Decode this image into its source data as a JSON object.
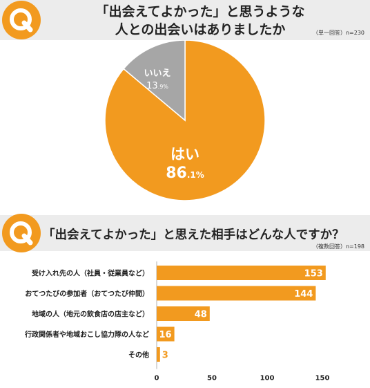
{
  "q1": {
    "icon_letter": "Q",
    "title_line1": "「出会えてよかった」と思うような",
    "title_line2": "人との出会いはありましたか",
    "note": "（単一回答）n=230"
  },
  "q2": {
    "icon_letter": "Q",
    "title": "「出会えてよかった」と思えた相手はどんな人ですか？",
    "note": "（複数回答）n=198"
  },
  "colors": {
    "orange": "#f29a1f",
    "gray": "#a6a6a6",
    "band": "#ececec"
  },
  "chart_data": [
    {
      "type": "pie",
      "slices": [
        {
          "label": "はい",
          "value": 86.1,
          "display_int": "86",
          "display_dec": ".1%",
          "color": "#f29a1f"
        },
        {
          "label": "いいえ",
          "value": 13.9,
          "display_int": "13",
          "display_dec": ".9%",
          "color": "#a6a6a6"
        }
      ]
    },
    {
      "type": "bar",
      "orientation": "horizontal",
      "categories": [
        "受け入れ先の人（社員・従業員など）",
        "おてつたびの参加者（おてつたび仲間）",
        "地域の人（地元の飲食店の店主など）",
        "行政関係者や地域おこし協力隊の人など",
        "その他"
      ],
      "values": [
        153,
        144,
        48,
        16,
        3
      ],
      "xlim": [
        0,
        160
      ],
      "xticks": [
        0,
        50,
        100,
        150
      ],
      "color": "#f29a1f"
    }
  ]
}
